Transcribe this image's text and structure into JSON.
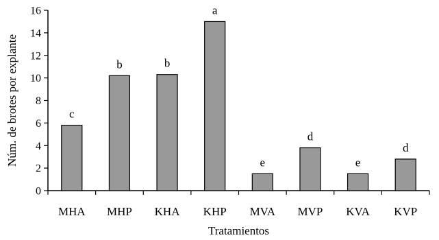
{
  "chart_data": {
    "type": "bar",
    "xlabel": "Tratamientos",
    "ylabel": "Núm. de brotes por explante",
    "ylim": [
      0,
      16
    ],
    "yticks": [
      0,
      2,
      4,
      6,
      8,
      10,
      12,
      14,
      16
    ],
    "ytick_labels": [
      "0",
      "2",
      "4",
      "6",
      "8",
      "10",
      "12",
      "14",
      "16"
    ],
    "categories": [
      "MHA",
      "MHP",
      "KHA",
      "KHP",
      "MVA",
      "MVP",
      "KVA",
      "KVP"
    ],
    "values": [
      5.8,
      10.2,
      10.3,
      15.0,
      1.5,
      3.8,
      1.5,
      2.8
    ],
    "significance_labels": [
      "c",
      "b",
      "b",
      "a",
      "e",
      "d",
      "e",
      "d"
    ],
    "bar_color": "#999999",
    "grid": false,
    "legend": false
  }
}
